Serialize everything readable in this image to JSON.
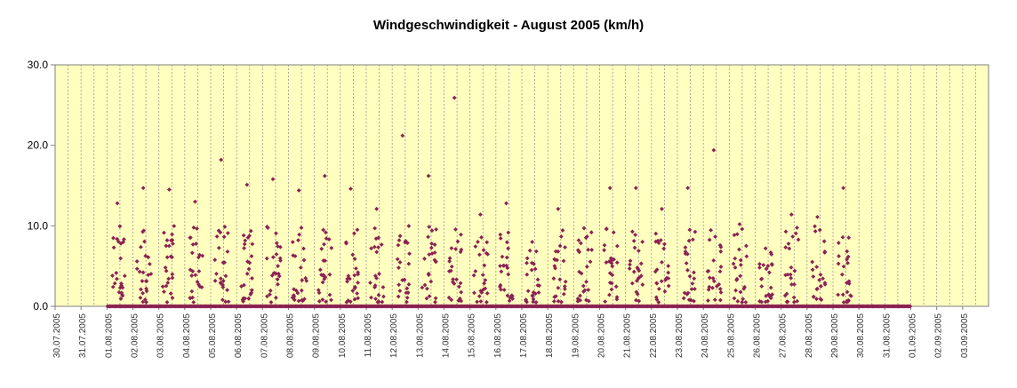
{
  "chart_data": {
    "type": "scatter",
    "title": "Windgeschwindigkeit - August 2005 (km/h)",
    "xlabel": "",
    "ylabel": "",
    "ylim": [
      0,
      30
    ],
    "yticks": [
      "0.0",
      "10.0",
      "20.0",
      "30.0"
    ],
    "x_tick_labels": [
      "30.07.2005",
      "31.07.2005",
      "01.08.2005",
      "02.08.2005",
      "03.08.2005",
      "04.08.2005",
      "05.08.2005",
      "06.08.2005",
      "07.08.2005",
      "08.08.2005",
      "09.08.2005",
      "10.08.2005",
      "11.08.2005",
      "12.08.2005",
      "13.08.2005",
      "14.08.2005",
      "15.08.2005",
      "16.08.2005",
      "17.08.2005",
      "18.08.2005",
      "19.08.2005",
      "20.08.2005",
      "21.08.2005",
      "22.08.2005",
      "23.08.2005",
      "24.08.2005",
      "25.08.2005",
      "26.08.2005",
      "27.08.2005",
      "28.08.2005",
      "29.08.2005",
      "30.08.2005",
      "31.08.2005",
      "01.09.2005",
      "02.09.2005",
      "03.09.2005"
    ],
    "grid": true,
    "legend": "none",
    "colors": {
      "plot_background": "#ffffc0",
      "marker": "#8b2252",
      "gridline": "#999999",
      "axis": "#808080"
    },
    "series": [
      {
        "x": [
          "2005-08-01",
          "2005-08-02",
          "2005-08-03",
          "2005-08-04",
          "2005-08-05",
          "2005-08-06",
          "2005-08-07",
          "2005-08-08",
          "2005-08-09",
          "2005-08-10",
          "2005-08-11",
          "2005-08-12",
          "2005-08-13",
          "2005-08-14",
          "2005-08-15",
          "2005-08-16",
          "2005-08-17",
          "2005-08-18",
          "2005-08-19",
          "2005-08-20",
          "2005-08-21",
          "2005-08-22",
          "2005-08-23",
          "2005-08-24",
          "2005-08-25",
          "2005-08-26",
          "2005-08-27",
          "2005-08-28",
          "2005-08-29",
          "2005-08-30",
          "2005-08-31"
        ],
        "y_max": [
          12.8,
          14.7,
          14.5,
          13.0,
          18.2,
          15.1,
          15.8,
          14.4,
          16.2,
          14.6,
          12.1,
          21.2,
          16.2,
          25.9,
          11.4,
          12.8,
          8.0,
          12.1,
          9.7,
          14.7,
          14.7,
          12.1,
          14.7,
          19.4,
          10.2,
          7.2,
          11.4,
          11.1,
          14.7,
          0,
          0
        ],
        "y_typical_range": [
          0.5,
          10
        ],
        "points_per_day": 24
      }
    ]
  }
}
